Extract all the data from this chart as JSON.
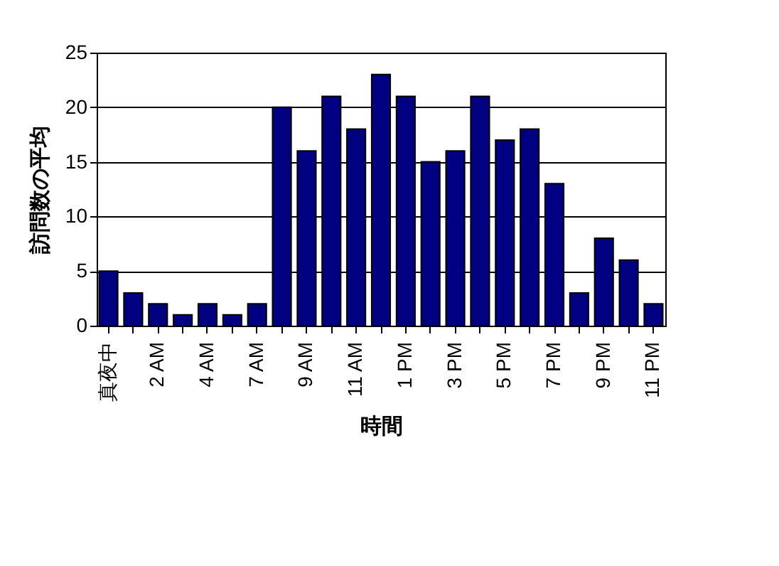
{
  "chart_data": {
    "type": "bar",
    "xlabel": "時間",
    "ylabel": "訪問数の平均",
    "categories": [
      "真夜中",
      null,
      "2 AM",
      null,
      "4 AM",
      null,
      "7 AM",
      null,
      "9 AM",
      null,
      "11 AM",
      null,
      "1 PM",
      null,
      "3 PM",
      null,
      "5 PM",
      null,
      "7 PM",
      null,
      "9 PM",
      null,
      "11 PM"
    ],
    "values": [
      5,
      3,
      2,
      1,
      2,
      1,
      2,
      20,
      16,
      21,
      18,
      23,
      21,
      15,
      16,
      21,
      17,
      18,
      13,
      3,
      8,
      6,
      2
    ],
    "color": "#000080",
    "ylim": [
      0,
      25
    ],
    "yticks": [
      0,
      5,
      10,
      15,
      20,
      25
    ],
    "grid": "y"
  }
}
